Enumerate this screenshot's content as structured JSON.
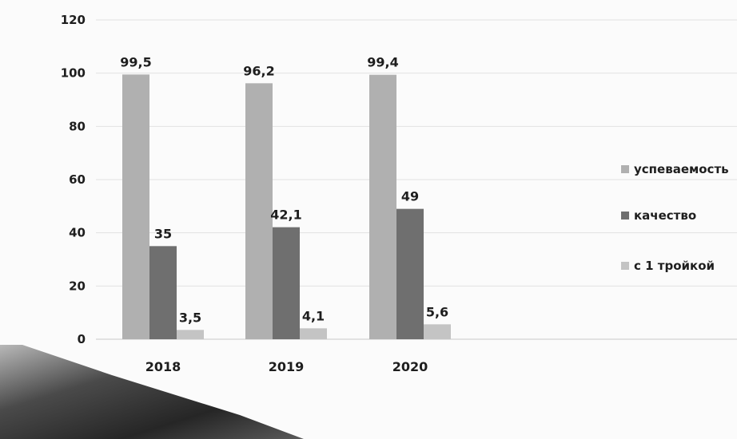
{
  "chart_data": {
    "type": "bar",
    "categories": [
      "2018",
      "2019",
      "2020"
    ],
    "series": [
      {
        "name": "успеваемость",
        "values": [
          99.5,
          96.2,
          99.4
        ],
        "labels": [
          "99,5",
          "96,2",
          "99,4"
        ],
        "color": "#b0b0b0"
      },
      {
        "name": "качество",
        "values": [
          35,
          42.1,
          49
        ],
        "labels": [
          "35",
          "42,1",
          "49"
        ],
        "color": "#6f6f6f"
      },
      {
        "name": "с 1 тройкой",
        "values": [
          3.5,
          4.1,
          5.6
        ],
        "labels": [
          "3,5",
          "4,1",
          "5,6"
        ],
        "color": "#c4c4c4"
      }
    ],
    "yticks": [
      "0",
      "20",
      "40",
      "60",
      "80",
      "100",
      "120"
    ],
    "ylim": [
      0,
      120
    ],
    "grid": true,
    "legend_position": "right"
  }
}
